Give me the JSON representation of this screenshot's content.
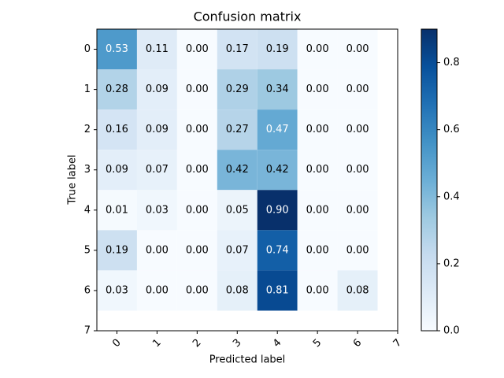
{
  "chart_data": {
    "type": "heatmap",
    "title": "Confusion matrix",
    "xlabel": "Predicted label",
    "ylabel": "True label",
    "colormap": "Blues",
    "xlim": [
      -0.5,
      7
    ],
    "ylim": [
      7,
      -0.5
    ],
    "xticks": [
      0,
      1,
      2,
      3,
      4,
      5,
      6,
      7
    ],
    "yticks": [
      0,
      1,
      2,
      3,
      4,
      5,
      6,
      7
    ],
    "rows": [
      {
        "values": [
          0.53,
          0.11,
          0,
          0.17,
          0.19,
          0,
          0
        ],
        "value_labels": [
          "0.53",
          "0.11",
          "0.00",
          "0.17",
          "0.19",
          "0.00",
          "0.00"
        ]
      },
      {
        "values": [
          0.28,
          0.09,
          0,
          0.29,
          0.34,
          0,
          0
        ],
        "value_labels": [
          "0.28",
          "0.09",
          "0.00",
          "0.29",
          "0.34",
          "0.00",
          "0.00"
        ]
      },
      {
        "values": [
          0.16,
          0.09,
          0,
          0.27,
          0.47,
          0,
          0
        ],
        "value_labels": [
          "0.16",
          "0.09",
          "0.00",
          "0.27",
          "0.47",
          "0.00",
          "0.00"
        ]
      },
      {
        "values": [
          0.09,
          0.07,
          0,
          0.42,
          0.42,
          0,
          0
        ],
        "value_labels": [
          "0.09",
          "0.07",
          "0.00",
          "0.42",
          "0.42",
          "0.00",
          "0.00"
        ]
      },
      {
        "values": [
          0.01,
          0.03,
          0,
          0.05,
          0.9,
          0,
          0
        ],
        "value_labels": [
          "0.01",
          "0.03",
          "0.00",
          "0.05",
          "0.90",
          "0.00",
          "0.00"
        ]
      },
      {
        "values": [
          0.19,
          0,
          0,
          0.07,
          0.74,
          0,
          0
        ],
        "value_labels": [
          "0.19",
          "0.00",
          "0.00",
          "0.07",
          "0.74",
          "0.00",
          "0.00"
        ]
      },
      {
        "values": [
          0.03,
          0,
          0,
          0.08,
          0.81,
          0,
          0.08
        ],
        "value_labels": [
          "0.03",
          "0.00",
          "0.00",
          "0.08",
          "0.81",
          "0.00",
          "0.08"
        ]
      }
    ],
    "clim": [
      0,
      0.9
    ],
    "cticks": [
      {
        "value": 0,
        "label": "0.0"
      },
      0.2,
      0.4,
      0.6,
      0.8
    ]
  }
}
